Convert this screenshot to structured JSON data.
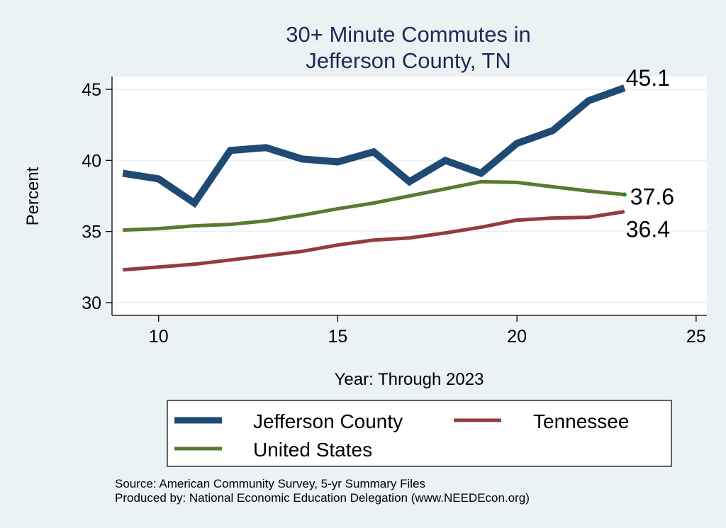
{
  "chart_data": {
    "type": "line",
    "title": [
      "30+ Minute Commutes in",
      "Jefferson County, TN"
    ],
    "xlabel": "Year: Through 2023",
    "ylabel": "Percent",
    "xlim": [
      8.7,
      25.3
    ],
    "ylim": [
      29.1,
      45.9
    ],
    "xticks": [
      10,
      15,
      20,
      25
    ],
    "yticks": [
      30,
      35,
      40,
      45
    ],
    "grid": true,
    "legend_position": "bottom",
    "x": [
      9,
      10,
      11,
      12,
      13,
      14,
      15,
      16,
      17,
      18,
      19,
      20,
      21,
      22,
      23
    ],
    "series": [
      {
        "name": "Jefferson County",
        "color": "#1f4a74",
        "values": [
          39.1,
          38.7,
          37.0,
          40.7,
          40.9,
          40.1,
          39.9,
          40.6,
          38.5,
          40.0,
          39.1,
          41.2,
          42.1,
          44.2,
          45.1
        ],
        "end_label": "45.1"
      },
      {
        "name": "Tennessee",
        "color": "#943b42",
        "values": [
          32.3,
          32.5,
          32.7,
          33.0,
          33.3,
          33.6,
          34.05,
          34.4,
          34.55,
          34.9,
          35.3,
          35.8,
          35.95,
          36.0,
          36.4
        ],
        "end_label": "36.4"
      },
      {
        "name": "United States",
        "color": "#5a7a32",
        "values": [
          35.1,
          35.2,
          35.4,
          35.5,
          35.75,
          36.15,
          36.6,
          37.0,
          37.5,
          38.0,
          38.5,
          38.45,
          38.15,
          37.85,
          37.6
        ],
        "end_label": "37.6"
      }
    ],
    "notes": [
      "Source: American Community Survey, 5-yr Summary Files",
      "Produced by: National Economic Education Delegation (www.NEEDEcon.org)"
    ]
  },
  "colors": {
    "background": "#eaf2f3",
    "plot_background": "#ffffff",
    "gridline": "#eaf2f3",
    "title": "#1f2a56",
    "us_endpoint_marker": "#1a8a1a"
  }
}
